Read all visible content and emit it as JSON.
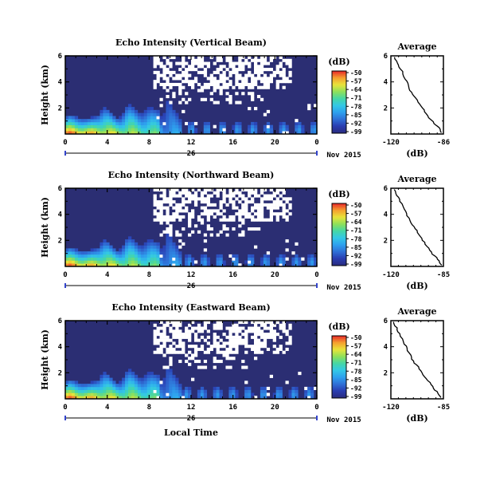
{
  "chart_data": [
    {
      "type": "heatmap",
      "title": "Echo Intensity (Vertical Beam)",
      "ylabel": "Height (km)",
      "xticks": [
        "0",
        "4",
        "8",
        "12",
        "16",
        "20",
        "0"
      ],
      "yticks": [
        "2",
        "4",
        "6"
      ],
      "xlim": [
        0,
        24
      ],
      "ylim": [
        0,
        6
      ],
      "day_label": "26",
      "date_label": "Nov 2015",
      "colorbar": {
        "unit": "(dB)",
        "ticks": [
          "-50",
          "-57",
          "-64",
          "-71",
          "-78",
          "-85",
          "-92",
          "-99"
        ],
        "range": [
          -99,
          -50
        ]
      }
    },
    {
      "type": "heatmap",
      "title": "Echo Intensity (Northward Beam)",
      "ylabel": "Height (km)",
      "xticks": [
        "0",
        "4",
        "8",
        "12",
        "16",
        "20",
        "0"
      ],
      "yticks": [
        "2",
        "4",
        "6"
      ],
      "xlim": [
        0,
        24
      ],
      "ylim": [
        0,
        6
      ],
      "day_label": "26",
      "date_label": "Nov 2015",
      "colorbar": {
        "unit": "(dB)",
        "ticks": [
          "-50",
          "-57",
          "-64",
          "-71",
          "-78",
          "-85",
          "-92",
          "-99"
        ],
        "range": [
          -99,
          -50
        ]
      }
    },
    {
      "type": "heatmap",
      "title": "Echo Intensity (Eastward Beam)",
      "ylabel": "Height (km)",
      "xticks": [
        "0",
        "4",
        "8",
        "12",
        "16",
        "20",
        "0"
      ],
      "yticks": [
        "2",
        "4",
        "6"
      ],
      "xlim": [
        0,
        24
      ],
      "ylim": [
        0,
        6
      ],
      "day_label": "26",
      "date_label": "Nov 2015",
      "xlabel": "Local Time",
      "colorbar": {
        "unit": "(dB)",
        "ticks": [
          "-50",
          "-57",
          "-64",
          "-71",
          "-78",
          "-85",
          "-92",
          "-99"
        ],
        "range": [
          -99,
          -50
        ]
      }
    },
    {
      "type": "line",
      "title": "Average",
      "xlabel": "(dB)",
      "xticks": [
        "-120",
        "-86"
      ],
      "yticks": [
        "2",
        "4",
        "6"
      ],
      "xlim": [
        -120,
        -86
      ],
      "ylim": [
        0,
        6
      ],
      "series": [
        {
          "x": [
            -117.5,
            -116.5,
            -115.5,
            -114,
            -112,
            -110.5,
            -109,
            -108,
            -106.5,
            -105,
            -103,
            -101,
            -99.5,
            -98,
            -96,
            -94,
            -92,
            -90,
            -88,
            -87
          ],
          "y": [
            5.9,
            5.6,
            5.3,
            5.0,
            4.6,
            4.2,
            3.9,
            3.5,
            3.2,
            2.9,
            2.6,
            2.3,
            2.0,
            1.7,
            1.4,
            1.1,
            0.8,
            0.6,
            0.35,
            0.1
          ]
        }
      ]
    },
    {
      "type": "line",
      "title": "Average",
      "xlabel": "(dB)",
      "xticks": [
        "-120",
        "-85"
      ],
      "yticks": [
        "2",
        "4",
        "6"
      ],
      "xlim": [
        -120,
        -85
      ],
      "ylim": [
        0,
        6
      ],
      "series": [
        {
          "x": [
            -117.5,
            -116.5,
            -115,
            -114,
            -112,
            -110,
            -109,
            -107.5,
            -106,
            -104,
            -102,
            -100.5,
            -99,
            -97,
            -95,
            -93,
            -91,
            -89,
            -87.5,
            -86.5
          ],
          "y": [
            5.9,
            5.6,
            5.3,
            5.0,
            4.6,
            4.2,
            3.9,
            3.5,
            3.2,
            2.9,
            2.6,
            2.3,
            2.0,
            1.7,
            1.4,
            1.1,
            0.8,
            0.55,
            0.3,
            0.1
          ]
        }
      ]
    },
    {
      "type": "line",
      "title": "Average",
      "xlabel": "(dB)",
      "xticks": [
        "-120",
        "-85"
      ],
      "yticks": [
        "2",
        "4",
        "6"
      ],
      "xlim": [
        -120,
        -85
      ],
      "ylim": [
        0,
        6
      ],
      "series": [
        {
          "x": [
            -118,
            -117,
            -115.5,
            -114,
            -112.5,
            -111,
            -109.5,
            -108,
            -106.5,
            -105,
            -103,
            -101,
            -99.5,
            -97.5,
            -95.5,
            -93.5,
            -91.5,
            -89.5,
            -88,
            -86.5
          ],
          "y": [
            5.9,
            5.6,
            5.3,
            5.0,
            4.6,
            4.2,
            3.9,
            3.5,
            3.2,
            2.9,
            2.6,
            2.3,
            2.0,
            1.7,
            1.4,
            1.1,
            0.8,
            0.55,
            0.3,
            0.1
          ]
        }
      ]
    }
  ]
}
